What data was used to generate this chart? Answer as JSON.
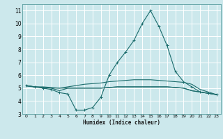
{
  "title": "",
  "xlabel": "Humidex (Indice chaleur)",
  "bg_color": "#cce8ec",
  "grid_color": "#ffffff",
  "line_color": "#1a6b6b",
  "xlim": [
    -0.5,
    23.5
  ],
  "ylim": [
    3,
    11.5
  ],
  "xticks": [
    0,
    1,
    2,
    3,
    4,
    5,
    6,
    7,
    8,
    9,
    10,
    11,
    12,
    13,
    14,
    15,
    16,
    17,
    18,
    19,
    20,
    21,
    22,
    23
  ],
  "yticks": [
    3,
    4,
    5,
    6,
    7,
    8,
    9,
    10,
    11
  ],
  "x": [
    0,
    1,
    2,
    3,
    4,
    5,
    6,
    7,
    8,
    9,
    10,
    11,
    12,
    13,
    14,
    15,
    16,
    17,
    18,
    19,
    20,
    21,
    22,
    23
  ],
  "line1": [
    5.2,
    5.1,
    5.0,
    4.9,
    4.65,
    4.55,
    3.3,
    3.3,
    3.5,
    4.3,
    6.0,
    7.0,
    7.8,
    8.7,
    10.0,
    11.0,
    9.8,
    8.3,
    6.3,
    5.5,
    5.1,
    4.7,
    4.6,
    4.5
  ],
  "line2": [
    5.15,
    5.1,
    5.05,
    5.0,
    5.0,
    5.0,
    5.0,
    5.0,
    5.0,
    5.0,
    5.05,
    5.1,
    5.1,
    5.1,
    5.1,
    5.1,
    5.1,
    5.1,
    5.05,
    5.0,
    4.8,
    4.7,
    4.6,
    4.5
  ],
  "line3": [
    5.2,
    5.1,
    5.1,
    5.05,
    5.0,
    5.1,
    5.2,
    5.3,
    5.35,
    5.4,
    5.5,
    5.55,
    5.6,
    5.65,
    5.65,
    5.65,
    5.6,
    5.55,
    5.5,
    5.45,
    5.3,
    4.9,
    4.7,
    4.5
  ],
  "line4": [
    5.2,
    5.1,
    5.05,
    5.0,
    4.8,
    5.0,
    5.0,
    5.0,
    5.0,
    5.0,
    5.05,
    5.1,
    5.1,
    5.1,
    5.1,
    5.1,
    5.1,
    5.1,
    5.05,
    5.0,
    4.8,
    4.7,
    4.6,
    4.5
  ]
}
